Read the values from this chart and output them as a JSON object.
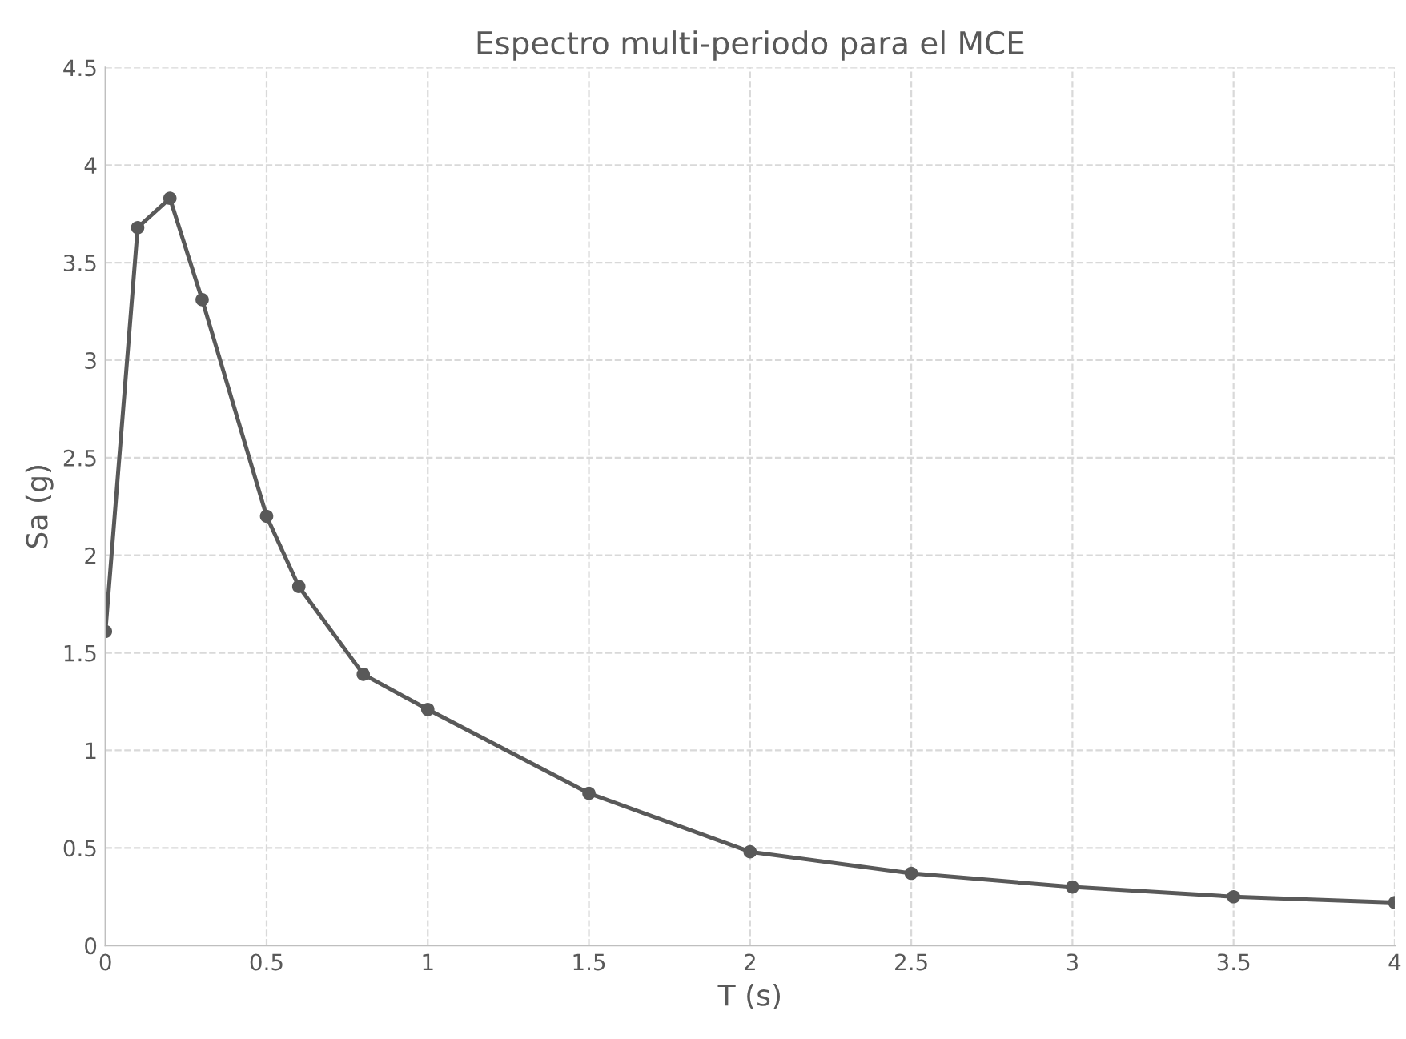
{
  "chart_data": {
    "type": "line",
    "title": "Espectro multi-periodo para el MCE",
    "xlabel": "T (s)",
    "ylabel": "Sa (g)",
    "x": [
      0,
      0.1,
      0.2,
      0.3,
      0.5,
      0.6,
      0.8,
      1,
      1.5,
      2,
      2.5,
      3,
      3.5,
      4
    ],
    "series": [
      {
        "color": "#595959",
        "values": [
          1.61,
          3.68,
          3.83,
          3.31,
          2.2,
          1.84,
          1.39,
          1.21,
          0.78,
          0.48,
          0.37,
          0.3,
          0.25,
          0.22
        ]
      }
    ],
    "xlim": [
      0,
      4
    ],
    "xticks": [
      0,
      0.5,
      1,
      1.5,
      2,
      2.5,
      3,
      3.5,
      4
    ],
    "ylim": [
      0,
      4.5
    ],
    "yticks": [
      0,
      0.5,
      1,
      1.5,
      2,
      2.5,
      3,
      3.5,
      4,
      4.5
    ],
    "grid": true,
    "marker": "circle",
    "line_style": "solid"
  }
}
